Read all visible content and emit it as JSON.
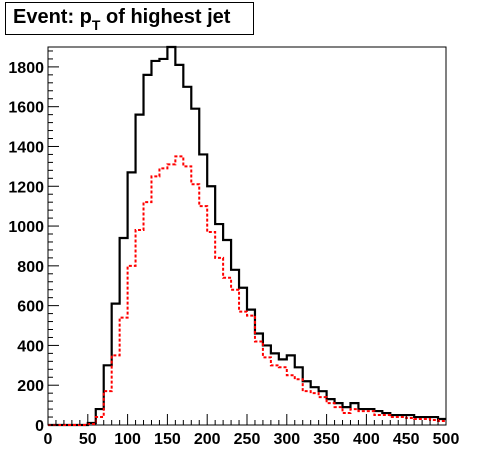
{
  "chart_data": {
    "type": "histogram",
    "title": {
      "prefix": "Event: p",
      "subscript": "T",
      "suffix": " of highest jet"
    },
    "xlabel": "",
    "ylabel": "",
    "xlim": [
      0,
      500
    ],
    "ylim": [
      0,
      1900
    ],
    "bin_width": 10,
    "x_bin_edges_start": 0,
    "xticks": [
      0,
      50,
      100,
      150,
      200,
      250,
      300,
      350,
      400,
      450,
      500
    ],
    "xtick_labels": [
      "0",
      "50",
      "100",
      "150",
      "200",
      "250",
      "300",
      "350",
      "400",
      "450",
      "500"
    ],
    "yticks": [
      0,
      200,
      400,
      600,
      800,
      1000,
      1200,
      1400,
      1600,
      1800
    ],
    "ytick_labels": [
      "0",
      "200",
      "400",
      "600",
      "800",
      "1000",
      "1200",
      "1400",
      "1600",
      "1800"
    ],
    "grid": false,
    "series": [
      {
        "style": "solid",
        "color": "#000000",
        "values": [
          0,
          0,
          0,
          0,
          0,
          10,
          80,
          300,
          610,
          940,
          1270,
          1560,
          1760,
          1830,
          1840,
          1900,
          1810,
          1700,
          1590,
          1360,
          1200,
          1010,
          930,
          780,
          690,
          580,
          460,
          400,
          360,
          330,
          350,
          290,
          220,
          190,
          170,
          130,
          110,
          90,
          110,
          80,
          80,
          70,
          60,
          50,
          50,
          50,
          40,
          40,
          40,
          30
        ]
      },
      {
        "style": "dashed",
        "color": "#ff0000",
        "values": [
          0,
          0,
          0,
          0,
          0,
          5,
          40,
          170,
          350,
          540,
          800,
          980,
          1120,
          1250,
          1290,
          1310,
          1350,
          1300,
          1210,
          1100,
          970,
          840,
          740,
          680,
          570,
          550,
          420,
          340,
          300,
          290,
          250,
          230,
          170,
          160,
          140,
          110,
          90,
          60,
          80,
          70,
          70,
          50,
          50,
          40,
          40,
          35,
          30,
          30,
          25,
          20
        ]
      }
    ]
  }
}
